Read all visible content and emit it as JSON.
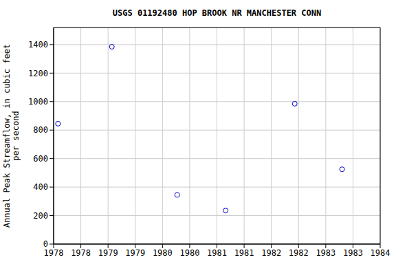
{
  "chart_data": {
    "type": "scatter",
    "title": "USGS 01192480 HOP BROOK NR MANCHESTER CONN",
    "y_label": "Annual Peak Streamflow, in cubic feet per second",
    "x": [
      1978.08,
      1979.07,
      1980.27,
      1981.16,
      1982.43,
      1983.3
    ],
    "values": [
      845,
      1385,
      345,
      235,
      985,
      525
    ],
    "color": "#0000cc",
    "marker": "open_circle",
    "grid": true,
    "xlim": [
      1978,
      1984
    ],
    "xticks": [
      1978,
      {
        "value": 1978.5,
        "label": "1978"
      },
      1979,
      {
        "value": 1979.5,
        "label": "1979"
      },
      1980,
      {
        "value": 1980.5,
        "label": "1980"
      },
      1981,
      {
        "value": 1981.5,
        "label": "1981"
      },
      1982,
      {
        "value": 1982.5,
        "label": "1982"
      },
      1983,
      {
        "value": 1983.5,
        "label": "1983"
      },
      1984
    ],
    "ylim": [
      0,
      1520
    ],
    "yticks": [
      0,
      200,
      400,
      600,
      800,
      1000,
      1200,
      1400
    ]
  }
}
